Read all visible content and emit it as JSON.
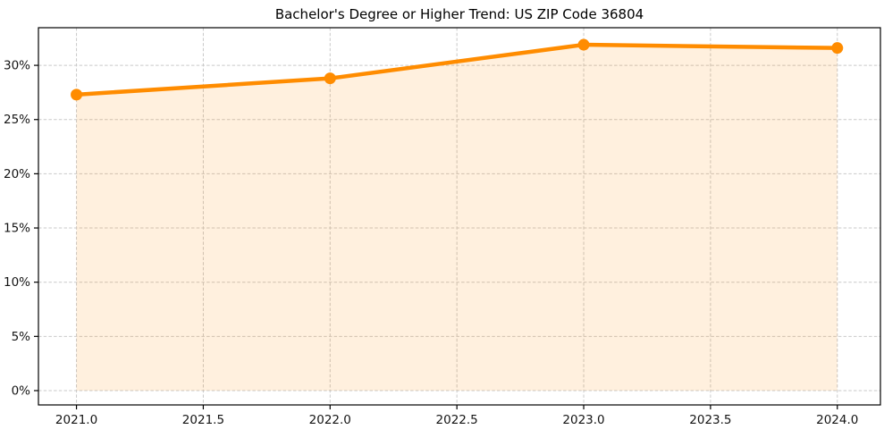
{
  "chart_data": {
    "type": "line",
    "title": "Bachelor's Degree or Higher Trend: US ZIP Code 36804",
    "x": [
      2021,
      2022,
      2023,
      2024
    ],
    "values": [
      27.3,
      28.8,
      31.9,
      31.6
    ],
    "fill_baseline": 0,
    "xlim": [
      2020.85,
      2024.17
    ],
    "ylim": [
      -1.32,
      33.47
    ],
    "xtick_values": [
      2021.0,
      2021.5,
      2022.0,
      2022.5,
      2023.0,
      2023.5,
      2024.0
    ],
    "xtick_labels": [
      "2021.0",
      "2021.5",
      "2022.0",
      "2022.5",
      "2023.0",
      "2023.5",
      "2024.0"
    ],
    "ytick_values": [
      0,
      5,
      10,
      15,
      20,
      25,
      30
    ],
    "ytick_labels": [
      "0%",
      "5%",
      "10%",
      "15%",
      "20%",
      "25%",
      "30%"
    ],
    "grid": true,
    "grid_style": "dashed",
    "line_color": "#FF8C00",
    "marker": "circle",
    "marker_color": "#FF8C00",
    "fill_color": "rgba(255,140,0,0.13)",
    "grid_color": "#c9c9c9",
    "spine_color": "#000000",
    "text_color": "#141414",
    "xlabel": "",
    "ylabel": ""
  }
}
